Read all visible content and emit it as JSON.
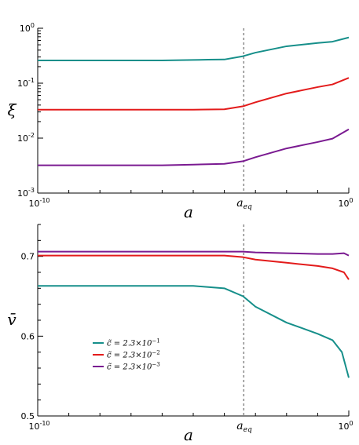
{
  "colors": {
    "teal": "#168f8a",
    "red": "#e31b1b",
    "purple": "#7a1a91",
    "axis": "#000000",
    "eq_line": "#8a8a8a"
  },
  "chart_data": [
    {
      "type": "line",
      "panel": "top",
      "xlabel": "a",
      "ylabel": "ξ",
      "xscale": "log",
      "yscale": "log",
      "xlim": [
        1e-10,
        1
      ],
      "ylim": [
        0.001,
        1
      ],
      "x_ticks": [
        {
          "value": 1e-10,
          "base": "10",
          "exp": "-10"
        },
        {
          "value": 1,
          "base": "10",
          "exp": "0"
        }
      ],
      "y_ticks": [
        {
          "value": 0.001,
          "base": "10",
          "exp": "-3"
        },
        {
          "value": 0.01,
          "base": "10",
          "exp": "-2"
        },
        {
          "value": 0.1,
          "base": "10",
          "exp": "-1"
        },
        {
          "value": 1,
          "base": "10",
          "exp": "0"
        }
      ],
      "annotation": {
        "label_main": "a",
        "label_sub": "eq",
        "x": 0.00042
      },
      "series": [
        {
          "color_key": "teal",
          "x": [
            1e-10,
            1e-08,
            1e-06,
            1e-05,
            3e-05,
            0.0001,
            0.0004,
            0.001,
            0.01,
            0.1,
            0.3,
            1
          ],
          "y": [
            0.26,
            0.26,
            0.26,
            0.265,
            0.268,
            0.27,
            0.31,
            0.36,
            0.47,
            0.54,
            0.57,
            0.68
          ]
        },
        {
          "color_key": "red",
          "x": [
            1e-10,
            1e-08,
            1e-06,
            1e-05,
            0.0001,
            0.0004,
            0.001,
            0.01,
            0.1,
            0.3,
            1
          ],
          "y": [
            0.033,
            0.033,
            0.033,
            0.033,
            0.0335,
            0.038,
            0.045,
            0.065,
            0.085,
            0.095,
            0.125
          ]
        },
        {
          "color_key": "purple",
          "x": [
            1e-10,
            1e-08,
            1e-06,
            1e-05,
            0.0001,
            0.0004,
            0.001,
            0.01,
            0.1,
            0.3,
            1
          ],
          "y": [
            0.0032,
            0.0032,
            0.0032,
            0.0033,
            0.0034,
            0.0038,
            0.0045,
            0.0065,
            0.0085,
            0.0098,
            0.0145
          ]
        }
      ]
    },
    {
      "type": "line",
      "panel": "bottom",
      "xlabel": "a",
      "ylabel": "v̄",
      "xscale": "log",
      "yscale": "linear",
      "xlim": [
        1e-10,
        1
      ],
      "ylim": [
        0.5,
        0.74
      ],
      "x_ticks": [
        {
          "value": 1e-10,
          "base": "10",
          "exp": "-10"
        },
        {
          "value": 1,
          "base": "10",
          "exp": "0"
        }
      ],
      "y_ticks": [
        {
          "value": 0.5,
          "label": "0.5"
        },
        {
          "value": 0.6,
          "label": "0.6"
        },
        {
          "value": 0.7,
          "label": "0.7"
        }
      ],
      "annotation": {
        "label_main": "a",
        "label_sub": "eq",
        "x": 0.00042
      },
      "legend": {
        "placement": "lower-left",
        "entries": [
          {
            "color_key": "teal",
            "label": "c̃ = 2.3×10",
            "exp": "−1"
          },
          {
            "color_key": "red",
            "label": "c̃ = 2.3×10",
            "exp": "−2"
          },
          {
            "color_key": "purple",
            "label": "c̃ = 2.3×10",
            "exp": "−3"
          }
        ]
      },
      "series": [
        {
          "color_key": "teal",
          "x": [
            1e-10,
            1e-08,
            1e-06,
            1e-05,
            0.0001,
            0.0004,
            0.001,
            0.01,
            0.1,
            0.3,
            0.6,
            1
          ],
          "y": [
            0.663,
            0.663,
            0.663,
            0.663,
            0.66,
            0.65,
            0.637,
            0.617,
            0.603,
            0.595,
            0.58,
            0.548
          ]
        },
        {
          "color_key": "red",
          "x": [
            1e-10,
            1e-08,
            1e-06,
            1e-05,
            0.0001,
            0.0004,
            0.001,
            0.01,
            0.1,
            0.3,
            0.7,
            1
          ],
          "y": [
            0.701,
            0.701,
            0.701,
            0.701,
            0.701,
            0.699,
            0.696,
            0.692,
            0.688,
            0.685,
            0.68,
            0.671
          ]
        },
        {
          "color_key": "purple",
          "x": [
            1e-10,
            1e-08,
            1e-06,
            1e-05,
            0.0001,
            0.0004,
            0.001,
            0.01,
            0.1,
            0.3,
            0.7,
            1
          ],
          "y": [
            0.706,
            0.706,
            0.706,
            0.706,
            0.706,
            0.706,
            0.705,
            0.704,
            0.703,
            0.703,
            0.704,
            0.701
          ]
        }
      ]
    }
  ]
}
